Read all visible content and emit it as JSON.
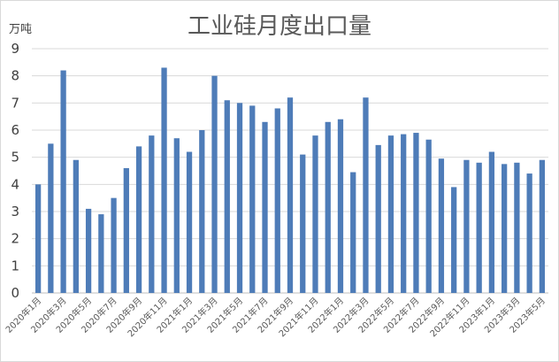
{
  "chart_data": {
    "type": "bar",
    "title": "工业硅月度出口量",
    "ylabel": "万吨",
    "xlabel": "",
    "ylim": [
      0,
      9
    ],
    "yticks": [
      0,
      1,
      2,
      3,
      4,
      5,
      6,
      7,
      8,
      9
    ],
    "grid": true,
    "legend": "none",
    "bar_color": "#4e7cb8",
    "categories": [
      "2020年1月",
      "2020年2月",
      "2020年3月",
      "2020年4月",
      "2020年5月",
      "2020年6月",
      "2020年7月",
      "2020年8月",
      "2020年9月",
      "2020年10月",
      "2020年11月",
      "2020年12月",
      "2021年1月",
      "2021年2月",
      "2021年3月",
      "2021年4月",
      "2021年5月",
      "2021年6月",
      "2021年7月",
      "2021年8月",
      "2021年9月",
      "2021年10月",
      "2021年11月",
      "2021年12月",
      "2022年1月",
      "2022年2月",
      "2022年3月",
      "2022年4月",
      "2022年5月",
      "2022年6月",
      "2022年7月",
      "2022年8月",
      "2022年9月",
      "2022年10月",
      "2022年11月",
      "2022年12月",
      "2023年1月",
      "2023年2月",
      "2023年3月",
      "2023年4月",
      "2023年5月"
    ],
    "tick_labels": [
      "2020年1月",
      "2020年3月",
      "2020年5月",
      "2020年7月",
      "2020年9月",
      "2020年11月",
      "2021年1月",
      "2021年3月",
      "2021年5月",
      "2021年7月",
      "2021年9月",
      "2021年11月",
      "2022年1月",
      "2022年3月",
      "2022年5月",
      "2022年7月",
      "2022年9月",
      "2022年11月",
      "2023年1月",
      "2023年3月",
      "2023年5月"
    ],
    "values": [
      4.0,
      5.5,
      8.2,
      4.9,
      3.1,
      2.9,
      3.5,
      4.6,
      5.4,
      5.8,
      8.3,
      5.7,
      5.2,
      6.0,
      8.0,
      7.1,
      7.0,
      6.9,
      6.3,
      6.8,
      7.2,
      5.1,
      5.8,
      6.3,
      6.4,
      4.45,
      7.2,
      5.45,
      5.8,
      5.85,
      5.9,
      5.65,
      4.95,
      3.9,
      4.9,
      4.8,
      5.2,
      4.75,
      4.8,
      4.4,
      4.9
    ]
  }
}
